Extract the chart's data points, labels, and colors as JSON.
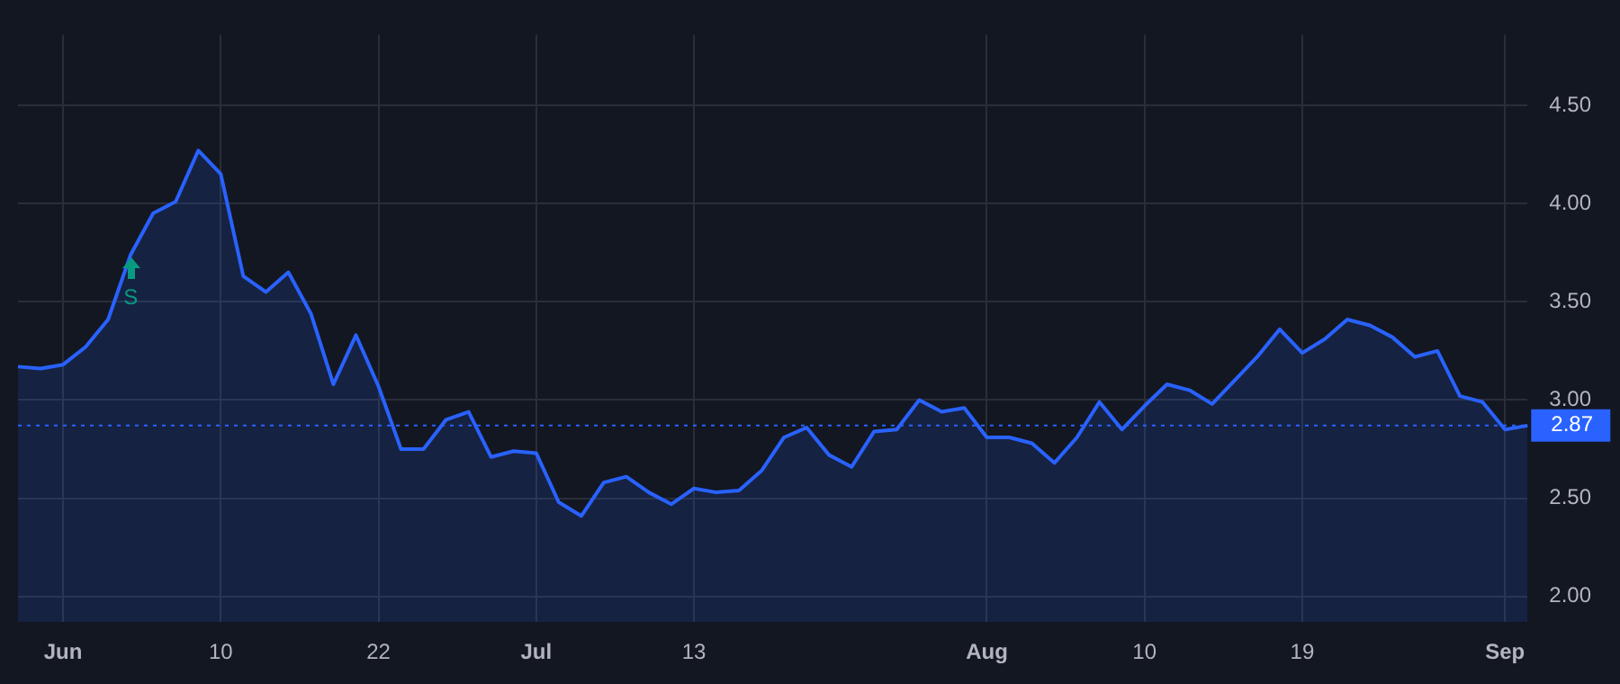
{
  "chart_data": {
    "type": "area",
    "categories": [
      null,
      null,
      "Jun",
      null,
      null,
      null,
      null,
      null,
      null,
      "10",
      null,
      null,
      null,
      null,
      null,
      null,
      "22",
      null,
      null,
      null,
      null,
      null,
      null,
      "Jul",
      null,
      null,
      null,
      null,
      null,
      null,
      "13",
      null,
      null,
      null,
      null,
      null,
      null,
      null,
      null,
      null,
      null,
      null,
      null,
      "Aug",
      null,
      null,
      null,
      null,
      null,
      null,
      "10",
      null,
      null,
      null,
      null,
      null,
      null,
      "19",
      null,
      null,
      null,
      null,
      null,
      null,
      null,
      null,
      "Sep",
      null
    ],
    "series": [
      {
        "color": "#2962ff",
        "values": [
          3.17,
          3.16,
          3.18,
          3.27,
          3.41,
          3.74,
          3.95,
          4.01,
          4.27,
          4.15,
          3.63,
          3.55,
          3.65,
          3.44,
          3.08,
          3.33,
          3.07,
          2.75,
          2.75,
          2.9,
          2.94,
          2.71,
          2.74,
          2.73,
          2.48,
          2.41,
          2.58,
          2.61,
          2.53,
          2.47,
          2.55,
          2.53,
          2.54,
          2.64,
          2.81,
          2.86,
          2.72,
          2.66,
          2.84,
          2.85,
          3.0,
          2.94,
          2.96,
          2.81,
          2.81,
          2.78,
          2.68,
          2.81,
          2.99,
          2.85,
          2.97,
          3.08,
          3.05,
          2.98,
          3.1,
          3.22,
          3.36,
          3.24,
          3.31,
          3.41,
          3.38,
          3.32,
          3.22,
          3.25,
          3.02,
          2.99,
          2.85,
          2.87
        ]
      }
    ],
    "ylim": [
      1.87,
      4.86
    ],
    "yticks": [
      {
        "value": 2,
        "label": "2.00"
      },
      {
        "value": 2.5,
        "label": "2.50"
      },
      {
        "value": 3,
        "label": "3.00"
      },
      {
        "value": 3.5,
        "label": "3.50"
      },
      {
        "value": 4,
        "label": "4.00"
      },
      {
        "value": 4.5,
        "label": "4.50"
      }
    ],
    "grid": true,
    "legend": false,
    "marker": "none",
    "line_style": "solid",
    "ref_lines": [
      {
        "axis": "y",
        "value": 2.87,
        "label": "2.87",
        "color": "#2962ff",
        "line_style": "dotted"
      }
    ],
    "annotations": [
      {
        "text": "S",
        "y": 3.74
      }
    ]
  }
}
